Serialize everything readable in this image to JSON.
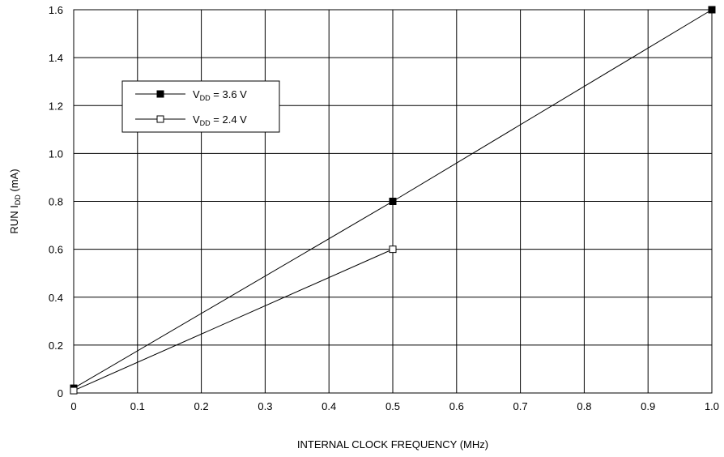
{
  "chart_data": {
    "type": "line",
    "title": "",
    "xlabel": "INTERNAL CLOCK FREQUENCY (MHz)",
    "ylabel": {
      "main": "RUN I",
      "sub": "DD",
      "tail": " (mA)"
    },
    "xlim": [
      0,
      1.0
    ],
    "ylim": [
      0,
      1.6
    ],
    "xticks": [
      0,
      0.1,
      0.2,
      0.3,
      0.4,
      0.5,
      0.6,
      0.7,
      0.8,
      0.9,
      1.0
    ],
    "xtick_labels": [
      "0",
      "0.1",
      "0.2",
      "0.3",
      "0.4",
      "0.5",
      "0.6",
      "0.7",
      "0.8",
      "0.9",
      "1.0"
    ],
    "yticks": [
      0,
      0.2,
      0.4,
      0.6,
      0.8,
      1.0,
      1.2,
      1.4,
      1.6
    ],
    "ytick_labels": [
      "0",
      "0.2",
      "0.4",
      "0.6",
      "0.8",
      "1.0",
      "1.2",
      "1.4",
      "1.6"
    ],
    "grid": true,
    "legend_position": "upper-left",
    "series": [
      {
        "name": "V_DD = 3.6 V",
        "label": {
          "main": "V",
          "sub": "DD",
          "tail": " = 3.6 V"
        },
        "marker": "filled-square",
        "x": [
          0,
          0.5,
          1.0
        ],
        "y": [
          0.02,
          0.8,
          1.6
        ]
      },
      {
        "name": "V_DD = 2.4 V",
        "label": {
          "main": "V",
          "sub": "DD",
          "tail": " = 2.4 V"
        },
        "marker": "open-square",
        "x": [
          0,
          0.5
        ],
        "y": [
          0.01,
          0.6
        ]
      }
    ],
    "colors": {
      "line": "#000000",
      "grid": "#000000",
      "background": "#ffffff"
    }
  }
}
